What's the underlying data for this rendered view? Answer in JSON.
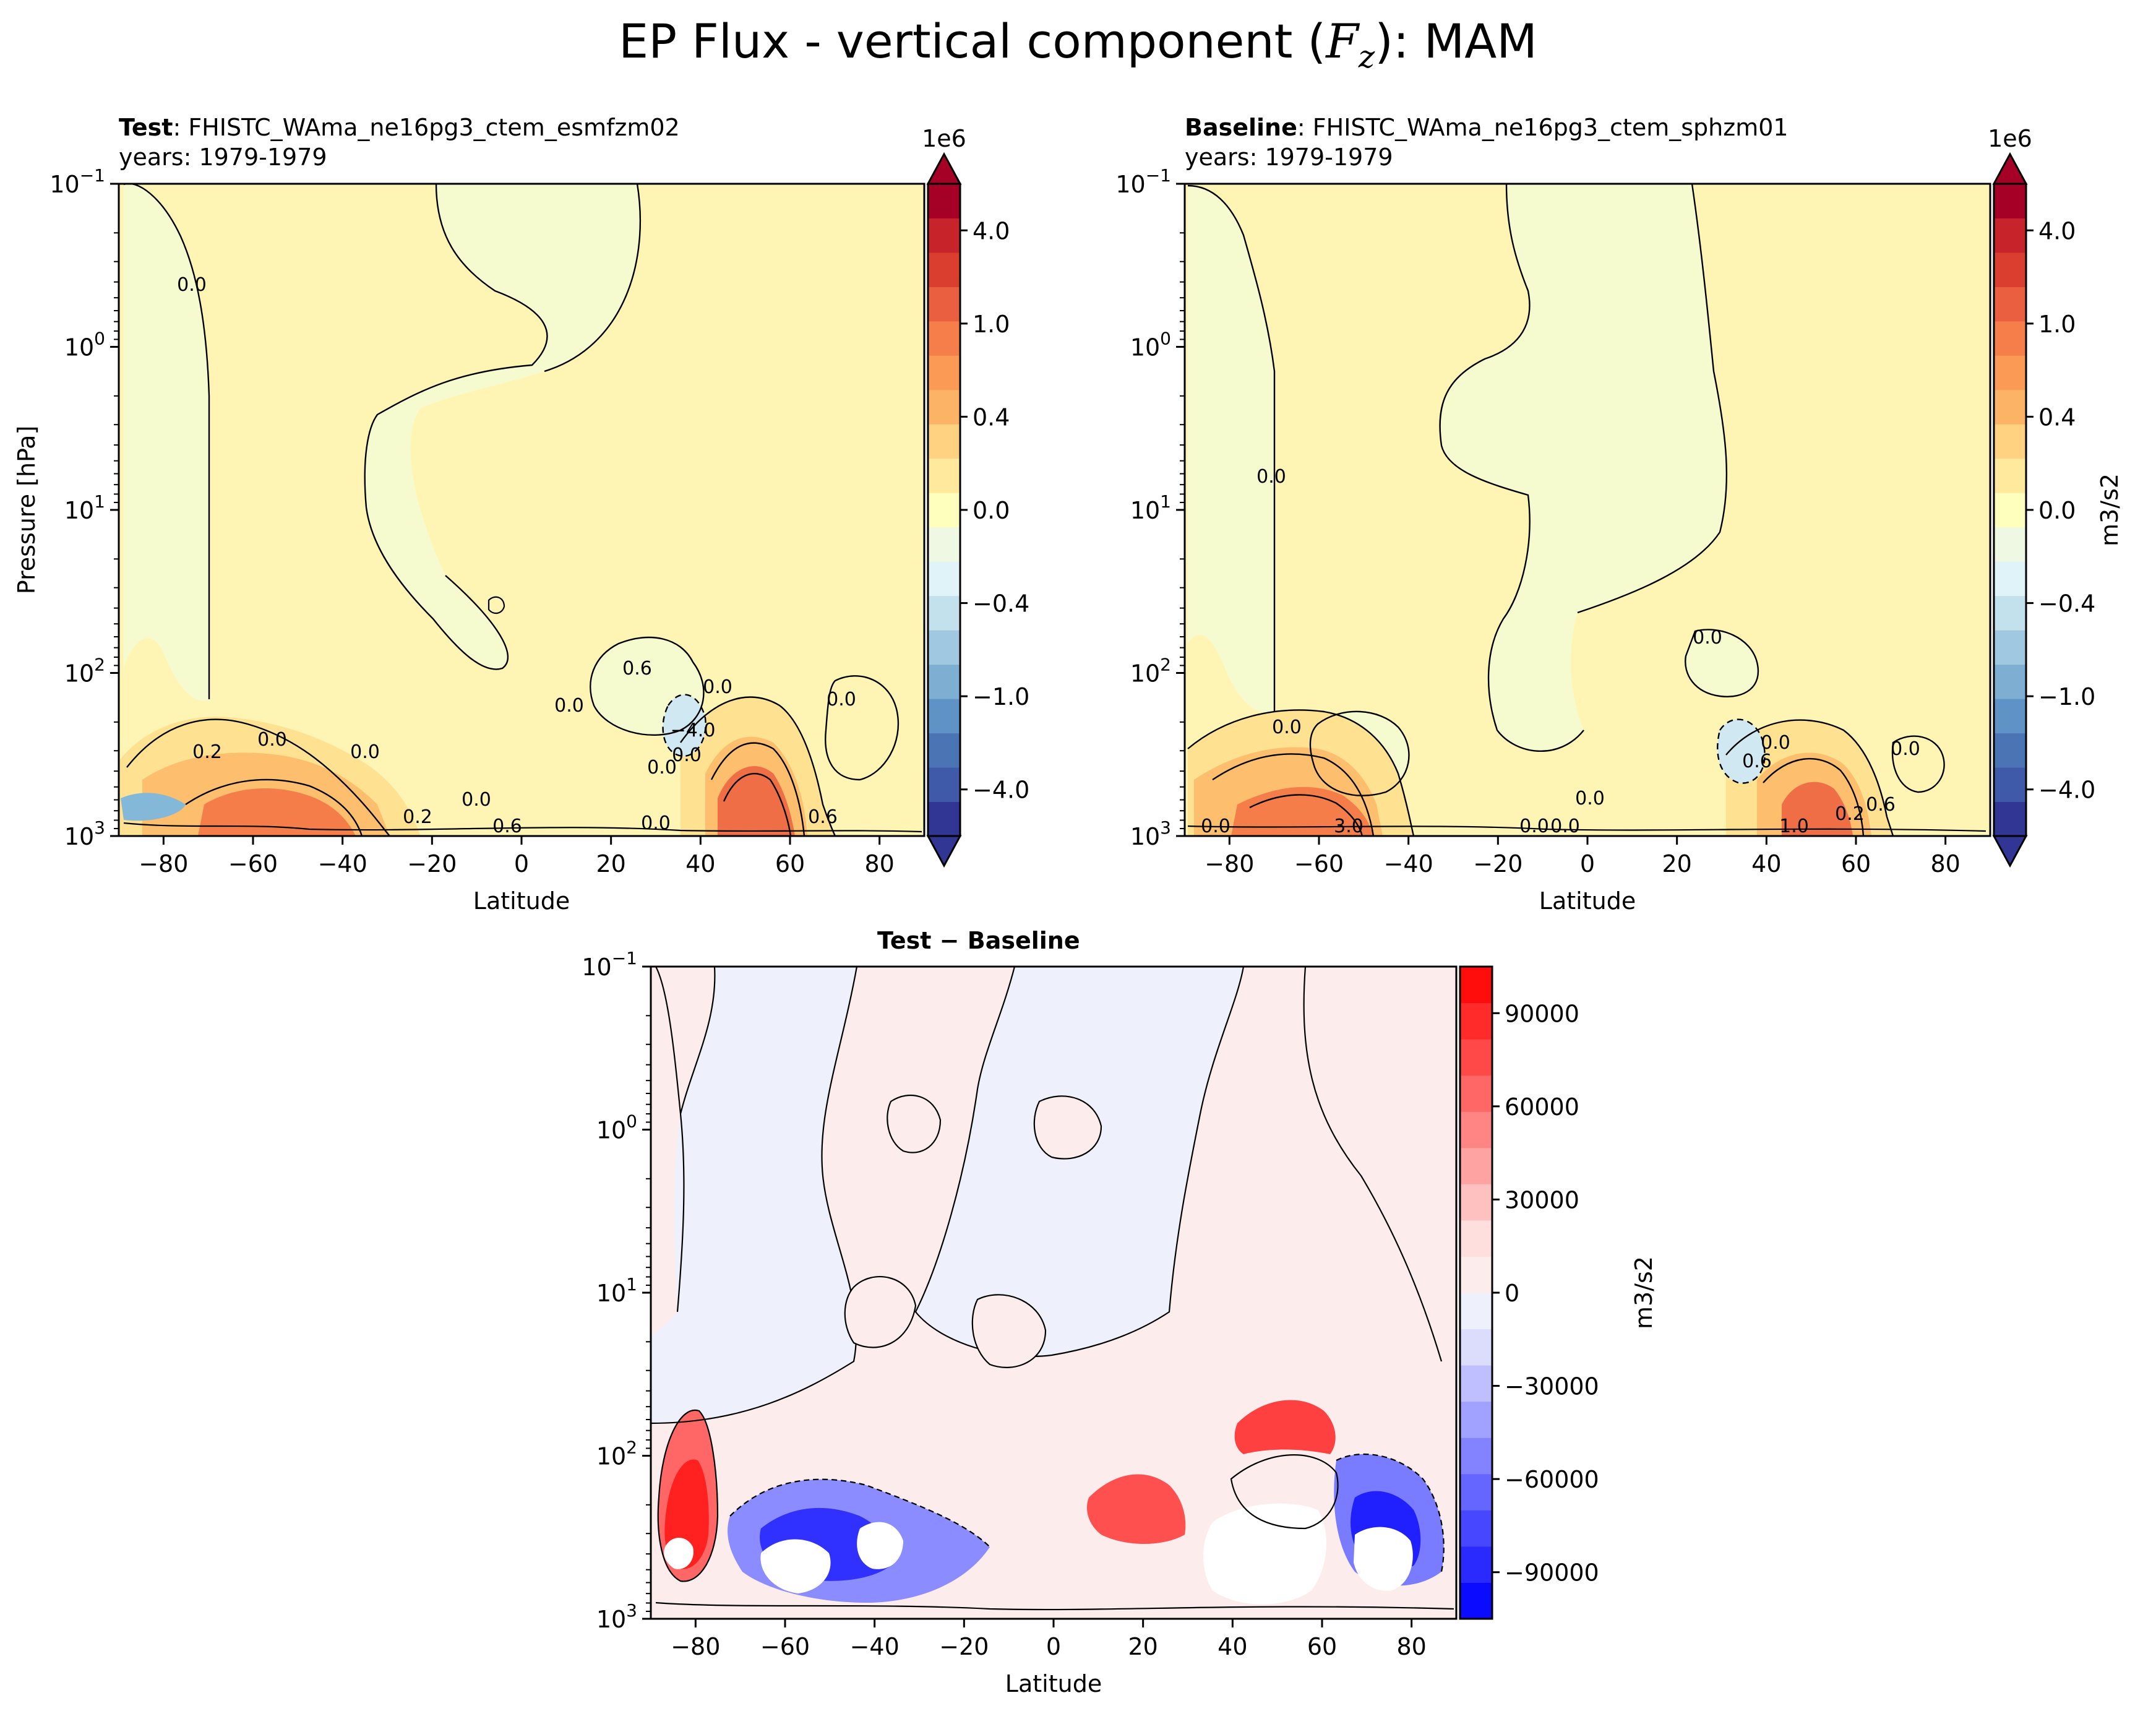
{
  "figure": {
    "title_prefix": "EP Flux - vertical component (",
    "title_symbol": "F",
    "title_subscript": "z",
    "title_suffix": "): MAM"
  },
  "chart_data": [
    {
      "type": "contour",
      "panel": "test",
      "label_bold": "Test",
      "label_sep": ": ",
      "case_name": "FHISTC_WAma_ne16pg3_ctem_esmfzm02",
      "years": "years: 1979-1979",
      "xlabel": "Latitude",
      "ylabel": "Pressure [hPa]",
      "xlim": [
        -90,
        90
      ],
      "ylim_hPa": [
        1000,
        0.1
      ],
      "yscale": "log",
      "xticks": [
        "−80",
        "−60",
        "−40",
        "−20",
        "0",
        "20",
        "40",
        "60",
        "80"
      ],
      "xtick_values": [
        -80,
        -60,
        -40,
        -20,
        0,
        20,
        40,
        60,
        80
      ],
      "yticks_mantissa": [
        "10",
        "10",
        "10",
        "10",
        "10"
      ],
      "yticks_exponent": [
        "−1",
        "0",
        "1",
        "2",
        "3"
      ],
      "ytick_values": [
        0.1,
        1,
        10,
        100,
        1000
      ],
      "colorbar": {
        "colormap": "RdYlBu_r",
        "scale_label": "1e6",
        "tick_labels": [
          "4.0",
          "1.0",
          "0.4",
          "0.0",
          "−0.4",
          "−1.0",
          "−4.0"
        ],
        "tick_values": [
          4.0,
          1.0,
          0.4,
          0.0,
          -0.4,
          -1.0,
          -4.0
        ],
        "extend": "both"
      },
      "contour_labels": [
        "0.0",
        "0.0",
        "0.0",
        "0.0",
        "0.2",
        "0.2",
        "0.6",
        "0.6",
        "0.0",
        "0.0",
        "0.0",
        "0.0",
        "−4.0",
        "0.0",
        "0.0",
        "0.6"
      ]
    },
    {
      "type": "contour",
      "panel": "baseline",
      "label_bold": "Baseline",
      "label_sep": ": ",
      "case_name": "FHISTC_WAma_ne16pg3_ctem_sphzm01",
      "years": "years: 1979-1979",
      "xlabel": "Latitude",
      "xlim": [
        -90,
        90
      ],
      "ylim_hPa": [
        1000,
        0.1
      ],
      "yscale": "log",
      "xticks": [
        "−80",
        "−60",
        "−40",
        "−20",
        "0",
        "20",
        "40",
        "60",
        "80"
      ],
      "yticks_mantissa": [
        "10",
        "10",
        "10",
        "10",
        "10"
      ],
      "yticks_exponent": [
        "−1",
        "0",
        "1",
        "2",
        "3"
      ],
      "colorbar": {
        "colormap": "RdYlBu_r",
        "scale_label": "1e6",
        "units": "m3/s2",
        "tick_labels": [
          "4.0",
          "1.0",
          "0.4",
          "0.0",
          "−0.4",
          "−1.0",
          "−4.0"
        ],
        "tick_values": [
          4.0,
          1.0,
          0.4,
          0.0,
          -0.4,
          -1.0,
          -4.0
        ],
        "extend": "both"
      },
      "contour_labels": [
        "0.0",
        "0.0",
        "0.0",
        "0.0",
        "0.0",
        "0.0",
        "0.0",
        "0.0",
        "3.0",
        "0.6",
        "1.0",
        "0.2",
        "0.6",
        "0.0"
      ]
    },
    {
      "type": "contour",
      "panel": "difference",
      "title_a": "Test",
      "title_sep": " − ",
      "title_b": "Baseline",
      "xlabel": "Latitude",
      "xlim": [
        -90,
        90
      ],
      "ylim_hPa": [
        1000,
        0.1
      ],
      "yscale": "log",
      "xticks": [
        "−80",
        "−60",
        "−40",
        "−20",
        "0",
        "20",
        "40",
        "60",
        "80"
      ],
      "yticks_mantissa": [
        "10",
        "10",
        "10",
        "10",
        "10"
      ],
      "yticks_exponent": [
        "−1",
        "0",
        "1",
        "2",
        "3"
      ],
      "colorbar": {
        "colormap": "bwr",
        "units": "m3/s2",
        "tick_labels": [
          "90000",
          "60000",
          "30000",
          "0",
          "−30000",
          "−60000",
          "−90000"
        ],
        "tick_values": [
          90000,
          60000,
          30000,
          0,
          -30000,
          -60000,
          -90000
        ],
        "extend": "neither"
      }
    }
  ]
}
